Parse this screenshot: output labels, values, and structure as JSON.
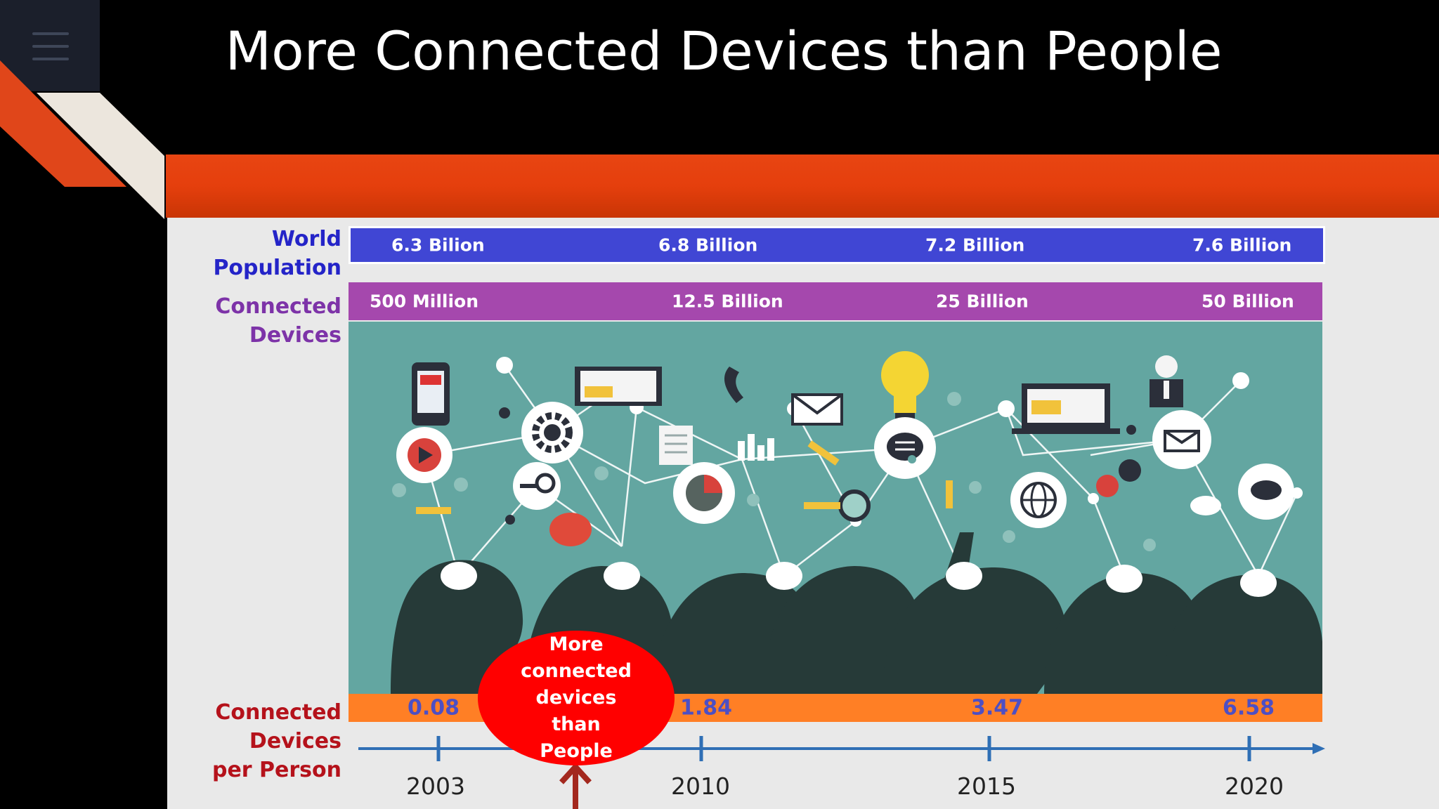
{
  "slide": {
    "title": "More Connected Devices than People",
    "labels": {
      "world_population": [
        "World",
        "Population"
      ],
      "connected_devices": [
        "Connected",
        "Devices"
      ],
      "per_person": [
        "Connected",
        "Devices",
        "per Person"
      ]
    },
    "world_population": [
      "6.3 Bilion",
      "6.8 Billion",
      "7.2 Billion",
      "7.6 Billion"
    ],
    "connected_devices": [
      "500 Million",
      "12.5 Billion",
      "25 Billion",
      "50 Billion"
    ],
    "per_person": [
      "0.08",
      "1.84",
      "3.47",
      "6.58"
    ],
    "years": [
      "2003",
      "2010",
      "2015",
      "2020"
    ],
    "callout": [
      "More",
      "connected",
      "devices",
      "than",
      "People"
    ]
  },
  "colors": {
    "population_band": "#4046d4",
    "devices_band": "#a548ad",
    "ratio_band": "#ff7f25",
    "title_bar": "#e53f0d",
    "callout": "#ff0000",
    "timeline": "#2f6fb5",
    "illustration_bg": "#63a6a1"
  },
  "icons": [
    "menu-icon",
    "phone-icon",
    "gear-icon",
    "play-icon",
    "magnifier-icon",
    "laptop-icon",
    "envelope-icon",
    "lightbulb-icon",
    "chat-icon",
    "globe-icon",
    "cloud-icon",
    "pie-chart-icon",
    "bar-chart-icon",
    "document-icon",
    "person-icon",
    "telephone-icon",
    "pencil-icon"
  ]
}
